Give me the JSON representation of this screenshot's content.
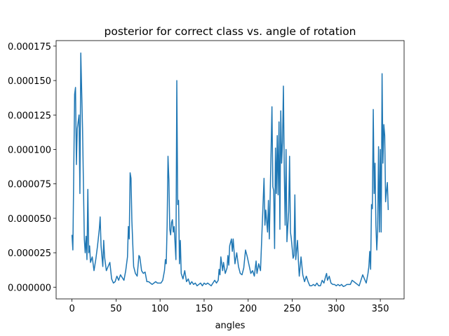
{
  "chart_data": {
    "type": "line",
    "title": "posterior for correct class vs. angle of rotation",
    "x_label": "angles",
    "color": "#1f77b4",
    "xlim": [
      -18,
      377
    ],
    "ylim": [
      -8.5e-06,
      0.000179
    ],
    "xticks": [
      0,
      50,
      100,
      150,
      200,
      250,
      300,
      350
    ],
    "yticks": [
      {
        "value": 0,
        "label": "0.000000"
      },
      {
        "value": 2.5e-05,
        "label": "0.000025"
      },
      {
        "value": 5e-05,
        "label": "0.000050"
      },
      {
        "value": 7.5e-05,
        "label": "0.000075"
      },
      {
        "value": 0.0001,
        "label": "0.000100"
      },
      {
        "value": 0.000125,
        "label": "0.000125"
      },
      {
        "value": 0.00015,
        "label": "0.000150"
      },
      {
        "value": 0.000175,
        "label": "0.000175"
      }
    ],
    "x": [
      0,
      1,
      3,
      4,
      5,
      6,
      8,
      9,
      10,
      12,
      14,
      15,
      16,
      17,
      18,
      19,
      20,
      21,
      23,
      25,
      27,
      29,
      31,
      32,
      33,
      35,
      36,
      37,
      39,
      41,
      43,
      45,
      47,
      49,
      51,
      53,
      55,
      57,
      59,
      61,
      63,
      64,
      65,
      66,
      67,
      68,
      70,
      72,
      74,
      76,
      77,
      79,
      81,
      83,
      85,
      87,
      89,
      91,
      93,
      95,
      97,
      99,
      101,
      103,
      105,
      106,
      107,
      108,
      109,
      110,
      111,
      112,
      113,
      114,
      115,
      116,
      118,
      119,
      120,
      121,
      122,
      123,
      124,
      126,
      128,
      130,
      132,
      134,
      136,
      138,
      140,
      142,
      144,
      146,
      148,
      150,
      152,
      154,
      156,
      158,
      160,
      162,
      164,
      166,
      167,
      168,
      169,
      170,
      171,
      172,
      174,
      176,
      177,
      178,
      179,
      181,
      182,
      183,
      185,
      187,
      189,
      191,
      193,
      195,
      197,
      199,
      201,
      203,
      205,
      207,
      209,
      210,
      212,
      214,
      218,
      219,
      220,
      222,
      223,
      224,
      227,
      228,
      229,
      230,
      231,
      232,
      233,
      234,
      235,
      236,
      237,
      238,
      239,
      240,
      241,
      242,
      243,
      244,
      246,
      247,
      248,
      249,
      251,
      252,
      253,
      254,
      256,
      257,
      258,
      260,
      262,
      264,
      266,
      268,
      270,
      272,
      274,
      276,
      278,
      280,
      282,
      284,
      286,
      288,
      289,
      290,
      292,
      294,
      296,
      298,
      300,
      302,
      304,
      306,
      308,
      310,
      312,
      314,
      316,
      318,
      320,
      322,
      324,
      326,
      328,
      330,
      334,
      336,
      337,
      338,
      339,
      340,
      341,
      342,
      343,
      344,
      345,
      346,
      347,
      348,
      349,
      350,
      351,
      352,
      353,
      354,
      355,
      356,
      357,
      358,
      359
    ],
    "values": [
      3.8e-05,
      2.7e-05,
      0.00014,
      0.000145,
      8.9e-05,
      0.000115,
      0.000125,
      6.8e-05,
      0.00017,
      0.000115,
      3.5e-05,
      2.5e-05,
      3.7e-05,
      2e-05,
      7.1e-05,
      2.5e-05,
      3e-05,
      1.8e-05,
      2.2e-05,
      1.2e-05,
      2e-05,
      3e-05,
      4.2e-05,
      5.1e-05,
      3e-05,
      1.5e-05,
      3.4e-05,
      2.2e-05,
      1.2e-05,
      1.5e-05,
      1.8e-05,
      6e-06,
      3e-06,
      4e-06,
      8e-06,
      5e-06,
      9e-06,
      7e-06,
      5e-06,
      1.2e-05,
      2.2e-05,
      4.4e-05,
      3.5e-05,
      8.3e-05,
      7.9e-05,
      4.8e-05,
      1.5e-05,
      1e-05,
      8e-06,
      2.3e-05,
      2.2e-05,
      1.2e-05,
      1e-05,
      1.1e-05,
      4e-06,
      4e-06,
      3e-06,
      2e-06,
      3e-06,
      4e-06,
      3e-06,
      3e-06,
      3e-06,
      5e-06,
      1.2e-05,
      2e-05,
      1.7e-05,
      4.5e-05,
      9.5e-05,
      7.8e-05,
      4.2e-05,
      3.8e-05,
      4.7e-05,
      4.9e-05,
      4e-05,
      4.4e-05,
      2e-05,
      0.00015,
      6e-05,
      6.3e-05,
      1.7e-05,
      3.4e-05,
      1e-05,
      6e-06,
      1.2e-05,
      4e-06,
      6e-06,
      2e-06,
      4e-06,
      2e-06,
      3e-06,
      1e-06,
      2e-06,
      3e-06,
      1e-06,
      3e-06,
      2e-06,
      3e-06,
      2e-06,
      1e-06,
      3e-06,
      5e-06,
      3e-06,
      5e-06,
      1.3e-05,
      9e-06,
      2.2e-05,
      1.7e-05,
      1.2e-05,
      1.8e-05,
      1e-05,
      1.4e-05,
      2.3e-05,
      1.6e-05,
      3e-05,
      3.5e-05,
      2.6e-05,
      3.5e-05,
      1.7e-05,
      2.5e-05,
      1.5e-05,
      1e-05,
      9e-06,
      1.4e-05,
      2.7e-05,
      2.2e-05,
      1.6e-05,
      1e-05,
      1.2e-05,
      8e-06,
      1.9e-05,
      1e-05,
      1.7e-05,
      1.2e-05,
      7.9e-05,
      4.5e-05,
      5.6e-05,
      4e-05,
      6.3e-05,
      3.5e-05,
      0.000131,
      7.3e-05,
      7e-05,
      2.8e-05,
      0.000101,
      6.8e-05,
      0.00011,
      6.7e-05,
      0.00012,
      4.2e-05,
      0.000128,
      9e-05,
      0.000105,
      0.000146,
      8.3e-05,
      4.5e-05,
      0.0001,
      3.3e-05,
      5.5e-05,
      9.5e-05,
      4e-05,
      3.5e-05,
      2.1e-05,
      2.3e-05,
      6.7e-05,
      2e-05,
      3.4e-05,
      1.9e-05,
      8e-06,
      2.2e-05,
      9e-06,
      4e-06,
      8e-06,
      4e-06,
      1e-06,
      1e-06,
      2e-06,
      1e-06,
      3e-06,
      1e-06,
      1e-06,
      5e-06,
      3e-06,
      8e-06,
      1e-05,
      5e-06,
      8e-06,
      3e-06,
      2e-06,
      2e-06,
      1e-06,
      2e-06,
      1e-06,
      2e-06,
      5e-07,
      1e-06,
      2e-06,
      2e-06,
      2e-06,
      5e-06,
      4e-06,
      3e-06,
      2e-06,
      1e-06,
      5e-06,
      9e-06,
      3e-06,
      1e-05,
      1.5e-05,
      2.6e-05,
      1.3e-05,
      6e-05,
      5.7e-05,
      0.000129,
      6.8e-05,
      9e-05,
      4.5e-05,
      2.7e-05,
      4.2e-05,
      0.000102,
      4e-05,
      0.0001,
      4e-05,
      0.000155,
      9e-05,
      0.000118,
      0.00011,
      6.2e-05,
      7e-05,
      7.6e-05,
      5.6e-05
    ]
  }
}
